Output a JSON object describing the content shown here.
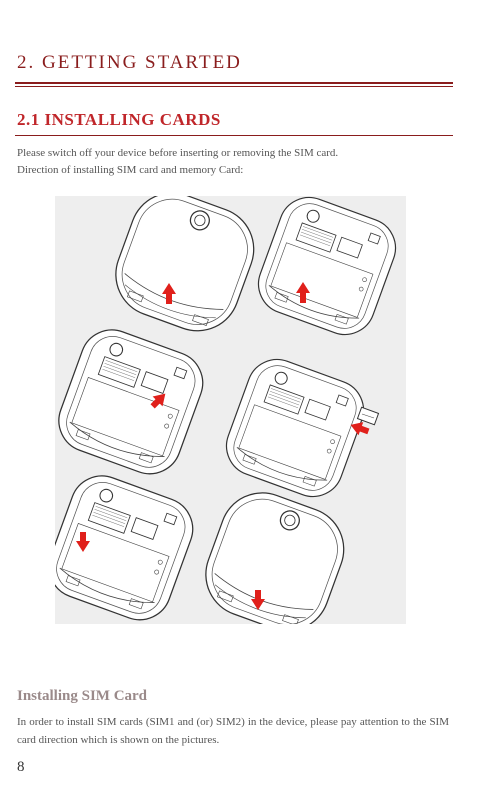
{
  "chapter": {
    "title": "2. GETTING STARTED"
  },
  "section": {
    "title": "2.1 INSTALLING CARDS"
  },
  "intro": {
    "line1": "Please switch off your device before inserting or removing the SIM card.",
    "line2": "Direction of installing SIM card and memory Card:"
  },
  "subsection": {
    "heading": "Installing SIM Card",
    "text": "In order to install SIM cards (SIM1 and (or) SIM2) in the device, please pay attention to the SIM card direction which is shown on the pictures."
  },
  "page_number": "8",
  "colors": {
    "heading": "#8a1d1d",
    "section": "#c0262a",
    "arrow": "#e0201b",
    "figure_bg": "#eeeeee"
  }
}
